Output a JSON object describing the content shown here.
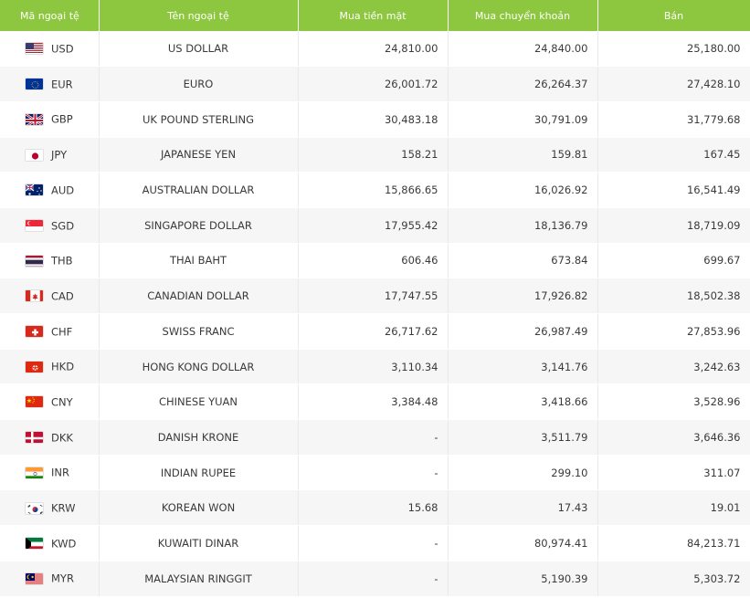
{
  "table": {
    "headers": [
      "Mã ngoại tệ",
      "Tên ngoại tệ",
      "Mua tiền mặt",
      "Mua chuyển khoản",
      "Bán"
    ],
    "rows": [
      {
        "flag": "us-flag-icon",
        "code": "USD",
        "name": "US DOLLAR",
        "cash": "24,810.00",
        "transfer": "24,840.00",
        "sell": "25,180.00"
      },
      {
        "flag": "eu-flag-icon",
        "code": "EUR",
        "name": "EURO",
        "cash": "26,001.72",
        "transfer": "26,264.37",
        "sell": "27,428.10"
      },
      {
        "flag": "gb-flag-icon",
        "code": "GBP",
        "name": "UK POUND STERLING",
        "cash": "30,483.18",
        "transfer": "30,791.09",
        "sell": "31,779.68"
      },
      {
        "flag": "jp-flag-icon",
        "code": "JPY",
        "name": "JAPANESE YEN",
        "cash": "158.21",
        "transfer": "159.81",
        "sell": "167.45"
      },
      {
        "flag": "au-flag-icon",
        "code": "AUD",
        "name": "AUSTRALIAN DOLLAR",
        "cash": "15,866.65",
        "transfer": "16,026.92",
        "sell": "16,541.49"
      },
      {
        "flag": "sg-flag-icon",
        "code": "SGD",
        "name": "SINGAPORE DOLLAR",
        "cash": "17,955.42",
        "transfer": "18,136.79",
        "sell": "18,719.09"
      },
      {
        "flag": "th-flag-icon",
        "code": "THB",
        "name": "THAI BAHT",
        "cash": "606.46",
        "transfer": "673.84",
        "sell": "699.67"
      },
      {
        "flag": "ca-flag-icon",
        "code": "CAD",
        "name": "CANADIAN DOLLAR",
        "cash": "17,747.55",
        "transfer": "17,926.82",
        "sell": "18,502.38"
      },
      {
        "flag": "ch-flag-icon",
        "code": "CHF",
        "name": "SWISS FRANC",
        "cash": "26,717.62",
        "transfer": "26,987.49",
        "sell": "27,853.96"
      },
      {
        "flag": "hk-flag-icon",
        "code": "HKD",
        "name": "HONG KONG DOLLAR",
        "cash": "3,110.34",
        "transfer": "3,141.76",
        "sell": "3,242.63"
      },
      {
        "flag": "cn-flag-icon",
        "code": "CNY",
        "name": "CHINESE YUAN",
        "cash": "3,384.48",
        "transfer": "3,418.66",
        "sell": "3,528.96"
      },
      {
        "flag": "dk-flag-icon",
        "code": "DKK",
        "name": "DANISH KRONE",
        "cash": "-",
        "transfer": "3,511.79",
        "sell": "3,646.36"
      },
      {
        "flag": "in-flag-icon",
        "code": "INR",
        "name": "INDIAN RUPEE",
        "cash": "-",
        "transfer": "299.10",
        "sell": "311.07"
      },
      {
        "flag": "kr-flag-icon",
        "code": "KRW",
        "name": "KOREAN WON",
        "cash": "15.68",
        "transfer": "17.43",
        "sell": "19.01"
      },
      {
        "flag": "kw-flag-icon",
        "code": "KWD",
        "name": "KUWAITI DINAR",
        "cash": "-",
        "transfer": "80,974.41",
        "sell": "84,213.71"
      },
      {
        "flag": "my-flag-icon",
        "code": "MYR",
        "name": "MALAYSIAN RINGGIT",
        "cash": "-",
        "transfer": "5,190.39",
        "sell": "5,303.72"
      }
    ]
  },
  "colors": {
    "header_bg": "#8dc63f",
    "header_text": "#ffffff",
    "row_alt_bg": "#f6f6f6",
    "text": "#3a3a3a"
  }
}
